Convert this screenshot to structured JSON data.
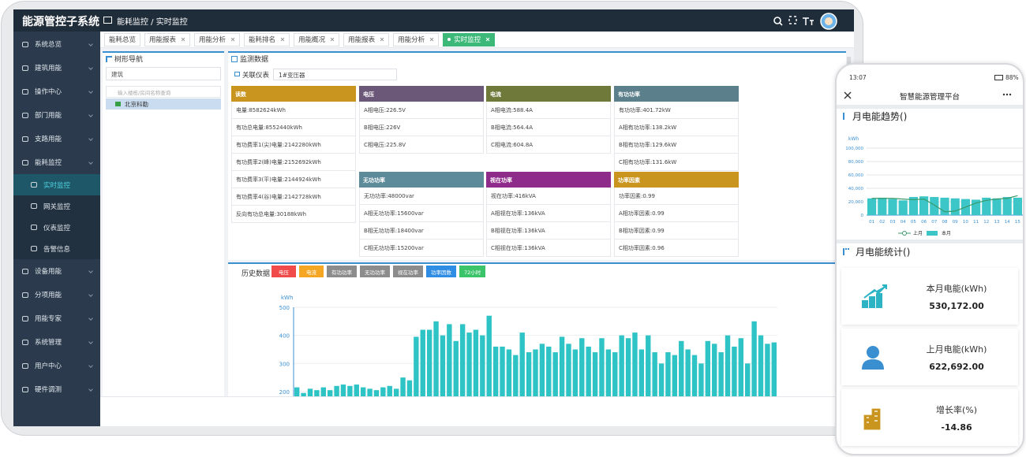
{
  "header": {
    "title": "能源管控子系统",
    "breadcrumb": "能耗监控 / 实时监控"
  },
  "sidebar": {
    "items": [
      "系统总览",
      "建筑用能",
      "操作中心",
      "部门用能",
      "支路用能",
      "能耗监控"
    ],
    "subitems": [
      "实时监控",
      "网关监控",
      "仪表监控",
      "告警信息"
    ],
    "items_after": [
      "设备用能",
      "分项用能",
      "用能专家",
      "系统管理",
      "用户中心",
      "硬件调测"
    ]
  },
  "tabs": [
    "能耗总览",
    "用能报表",
    "用能分析",
    "能耗排名",
    "用能概况",
    "用能报表",
    "用能分析",
    "实时监控"
  ],
  "tree": {
    "title": "树形导航",
    "select": "建筑",
    "search_placeholder": "输入楼栋/房间名称查询",
    "node": "北京科勒"
  },
  "monitor": {
    "title": "监测数据",
    "meter_label": "关联仪表",
    "meter": "1#变压器",
    "cards": [
      {
        "title": "读数",
        "color": "#c9951f",
        "items": [
          "电量:8582624kWh",
          "有功总电量:8552440kWh",
          "有功费率1(尖)电量:2142280kWh",
          "有功费率2(峰)电量:2152692kWh",
          "有功费率3(平)电量:2144924kWh",
          "有功费率4(谷)电量:2142728kWh",
          "反向有功总电量:30188kWh"
        ]
      },
      {
        "title": "电压",
        "color": "#6b5878",
        "items": [
          "A相电压:226.5V",
          "B相电压:226V",
          "C相电压:225.8V"
        ]
      },
      {
        "title": "电流",
        "color": "#6f7a3a",
        "items": [
          "A相电流:588.4A",
          "B相电流:564.4A",
          "C相电流:604.8A"
        ]
      },
      {
        "title": "有功功率",
        "color": "#5b7f8b",
        "items": [
          "有功功率:401.72kW",
          "A相有功功率:138.2kW",
          "B相有功功率:129.6kW",
          "C相有功功率:131.6kW"
        ]
      },
      {
        "title": "无功功率",
        "color": "#5d8b99",
        "items": [
          "无功功率:48000var",
          "A相无功功率:15600var",
          "B相无功功率:18400var",
          "C相无功功率:15200var"
        ]
      },
      {
        "title": "视在功率",
        "color": "#8f2b8b",
        "items": [
          "视在功率:416kVA",
          "A相视在功率:136kVA",
          "B相视在功率:136kVA",
          "C相视在功率:136kVA"
        ]
      },
      {
        "title": "功率因素",
        "color": "#c9951f",
        "items": [
          "功率因素:0.99",
          "A相功率因素:0.99",
          "B相功率因素:0.99",
          "C相功率因素:0.96"
        ]
      }
    ]
  },
  "history": {
    "title": "历史数据",
    "buttons": [
      {
        "label": "电压",
        "color": "#f04a4a"
      },
      {
        "label": "电流",
        "color": "#f5a623"
      },
      {
        "label": "有功功率",
        "color": "#8c8c8c"
      },
      {
        "label": "无功功率",
        "color": "#8c8c8c"
      },
      {
        "label": "视在功率",
        "color": "#8c8c8c"
      },
      {
        "label": "功率因数",
        "color": "#2f8de4"
      },
      {
        "label": "72小时",
        "color": "#3cc46a"
      }
    ],
    "chart_data": {
      "type": "bar",
      "unit": "kWh",
      "ylim": [
        183,
        500
      ],
      "yticks": [
        200,
        300,
        400,
        500
      ],
      "color": "#2ec4c6",
      "grid": true,
      "values": [
        215,
        195,
        210,
        205,
        215,
        205,
        220,
        225,
        220,
        225,
        215,
        210,
        205,
        215,
        220,
        210,
        250,
        240,
        395,
        420,
        420,
        450,
        400,
        440,
        380,
        440,
        410,
        420,
        400,
        470,
        360,
        360,
        350,
        330,
        410,
        340,
        350,
        370,
        360,
        340,
        395,
        370,
        350,
        390,
        360,
        340,
        390,
        350,
        340,
        400,
        390,
        410,
        350,
        400,
        340,
        300,
        340,
        330,
        380,
        350,
        330,
        300,
        380,
        370,
        340,
        400,
        360,
        390,
        300,
        450,
        400,
        370,
        375
      ]
    }
  },
  "phone": {
    "time": "13:07",
    "battery": "88%",
    "title": "智慧能源管理平台",
    "trend_title": "月电能趋势()",
    "stats_title": "月电能统计()",
    "chart_data": {
      "type": "bar",
      "unit": "kWh",
      "categories": [
        "01",
        "02",
        "03",
        "04",
        "05",
        "06",
        "07",
        "08",
        "09",
        "10",
        "11",
        "12",
        "13",
        "14",
        "15"
      ],
      "ylim": [
        0,
        100000
      ],
      "yticks": [
        0,
        {
          "value": 20000,
          "label": "20,000"
        },
        {
          "value": 40000,
          "label": "40,000"
        },
        {
          "value": 60000,
          "label": "60,000"
        },
        {
          "value": 80000,
          "label": "80,000"
        },
        {
          "value": 100000,
          "label": "100,000"
        }
      ],
      "grid": true,
      "series": [
        {
          "name": "上月",
          "type": "line",
          "color": "#3a9a6a",
          "values": [
            25000,
            25000,
            25000,
            24000,
            23000,
            24000,
            15000,
            5000,
            6000,
            12000,
            18000,
            22000,
            24000,
            25000,
            29000
          ]
        },
        {
          "name": "本月",
          "type": "bar",
          "color": "#3dc6c8",
          "values": [
            25000,
            26000,
            24000,
            22000,
            27000,
            28000,
            27000,
            26000,
            25000,
            24000,
            23000,
            26000,
            25000,
            27000,
            26000
          ]
        }
      ]
    },
    "stats": [
      {
        "label": "本月电能(kWh)",
        "value": "530,172.00"
      },
      {
        "label": "上月电能(kWh)",
        "value": "622,692.00"
      },
      {
        "label": "增长率(%)",
        "value": "-14.86"
      }
    ]
  }
}
